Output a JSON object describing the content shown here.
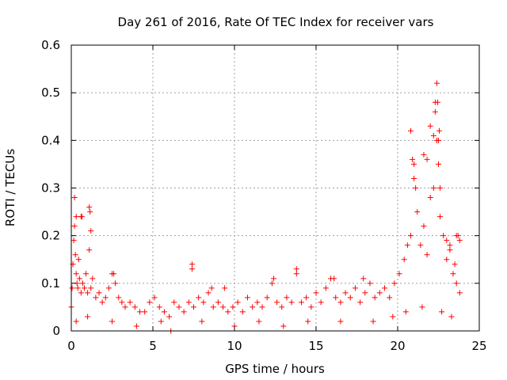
{
  "chart_data": {
    "type": "scatter",
    "title": "Day 261 of 2016, Rate Of TEC Index for receiver vars",
    "xlabel": "GPS time / hours",
    "ylabel": "ROTI / TECUs",
    "xlim": [
      0,
      25
    ],
    "ylim": [
      0,
      0.6
    ],
    "xticks": [
      0,
      5,
      10,
      15,
      20,
      25
    ],
    "xtick_labels": [
      "0",
      "5",
      "10",
      "15",
      "20",
      "25"
    ],
    "yticks": [
      0,
      0.1,
      0.2,
      0.3,
      0.4,
      0.5,
      0.6
    ],
    "ytick_labels": [
      "0",
      "0.1",
      "0.2",
      "0.3",
      "0.4",
      "0.5",
      "0.6"
    ],
    "grid": true,
    "marker": "plus",
    "marker_color": "#ff0000",
    "series": [
      {
        "name": "ROTI",
        "x": [
          0.0,
          0.05,
          0.1,
          0.15,
          0.2,
          0.25,
          0.3,
          0.35,
          0.4,
          0.45,
          0.5,
          0.6,
          0.7,
          0.8,
          0.9,
          1.0,
          1.1,
          1.2,
          1.3,
          1.5,
          1.7,
          1.9,
          2.1,
          2.3,
          2.5,
          2.7,
          2.9,
          3.1,
          3.3,
          3.6,
          3.9,
          4.2,
          4.5,
          4.8,
          5.1,
          5.4,
          5.7,
          6.0,
          6.3,
          6.6,
          6.9,
          7.2,
          7.5,
          7.8,
          8.1,
          8.4,
          8.7,
          9.0,
          9.3,
          9.6,
          9.9,
          10.2,
          10.5,
          10.8,
          11.1,
          11.4,
          11.7,
          12.0,
          12.3,
          12.6,
          12.9,
          13.2,
          13.5,
          13.8,
          14.1,
          14.4,
          14.7,
          15.0,
          15.3,
          15.6,
          15.9,
          16.2,
          16.5,
          16.8,
          17.1,
          17.4,
          17.7,
          18.0,
          18.3,
          18.6,
          18.9,
          19.2,
          19.5,
          19.8,
          20.1,
          20.4,
          20.6,
          20.8,
          21.0,
          21.2,
          21.4,
          21.6,
          21.8,
          22.0,
          22.2,
          22.3,
          22.4,
          22.5,
          22.6,
          22.8,
          23.0,
          23.2,
          23.4,
          23.6,
          23.8,
          0.2,
          0.3,
          0.6,
          0.65,
          1.1,
          1.15,
          1.2,
          2.6,
          7.4,
          7.4,
          8.6,
          9.4,
          12.4,
          13.8,
          16.1,
          17.9,
          20.8,
          20.9,
          21.0,
          21.1,
          21.6,
          21.8,
          22.0,
          22.2,
          22.3,
          22.4,
          22.45,
          22.5,
          22.55,
          22.6,
          23.0,
          23.2,
          23.5,
          23.6,
          23.7,
          23.8,
          0.3,
          1.0,
          2.5,
          4.0,
          5.5,
          6.1,
          8.0,
          10.0,
          11.5,
          13.0,
          14.5,
          16.5,
          18.5,
          19.7,
          20.5,
          21.5,
          22.7,
          23.3
        ],
        "y": [
          0.05,
          0.09,
          0.14,
          0.19,
          0.22,
          0.16,
          0.12,
          0.1,
          0.09,
          0.15,
          0.11,
          0.08,
          0.1,
          0.09,
          0.12,
          0.08,
          0.17,
          0.09,
          0.11,
          0.07,
          0.08,
          0.06,
          0.07,
          0.09,
          0.12,
          0.1,
          0.07,
          0.06,
          0.05,
          0.06,
          0.05,
          0.04,
          0.04,
          0.06,
          0.07,
          0.05,
          0.04,
          0.03,
          0.06,
          0.05,
          0.04,
          0.06,
          0.05,
          0.07,
          0.06,
          0.08,
          0.05,
          0.06,
          0.05,
          0.04,
          0.05,
          0.06,
          0.04,
          0.07,
          0.05,
          0.06,
          0.05,
          0.07,
          0.1,
          0.06,
          0.05,
          0.07,
          0.06,
          0.12,
          0.06,
          0.07,
          0.05,
          0.08,
          0.06,
          0.09,
          0.11,
          0.07,
          0.06,
          0.08,
          0.07,
          0.09,
          0.06,
          0.08,
          0.1,
          0.07,
          0.08,
          0.09,
          0.07,
          0.1,
          0.12,
          0.15,
          0.18,
          0.2,
          0.32,
          0.25,
          0.18,
          0.22,
          0.16,
          0.28,
          0.3,
          0.48,
          0.4,
          0.35,
          0.24,
          0.2,
          0.15,
          0.17,
          0.12,
          0.1,
          0.08,
          0.28,
          0.24,
          0.24,
          0.24,
          0.26,
          0.25,
          0.21,
          0.12,
          0.14,
          0.13,
          0.09,
          0.09,
          0.11,
          0.13,
          0.11,
          0.11,
          0.42,
          0.36,
          0.35,
          0.3,
          0.37,
          0.36,
          0.43,
          0.41,
          0.46,
          0.52,
          0.48,
          0.4,
          0.42,
          0.3,
          0.19,
          0.18,
          0.14,
          0.2,
          0.2,
          0.19,
          0.02,
          0.03,
          0.02,
          0.01,
          0.02,
          0.0,
          0.02,
          0.01,
          0.02,
          0.01,
          0.02,
          0.02,
          0.02,
          0.03,
          0.04,
          0.05,
          0.04,
          0.03
        ]
      }
    ]
  }
}
